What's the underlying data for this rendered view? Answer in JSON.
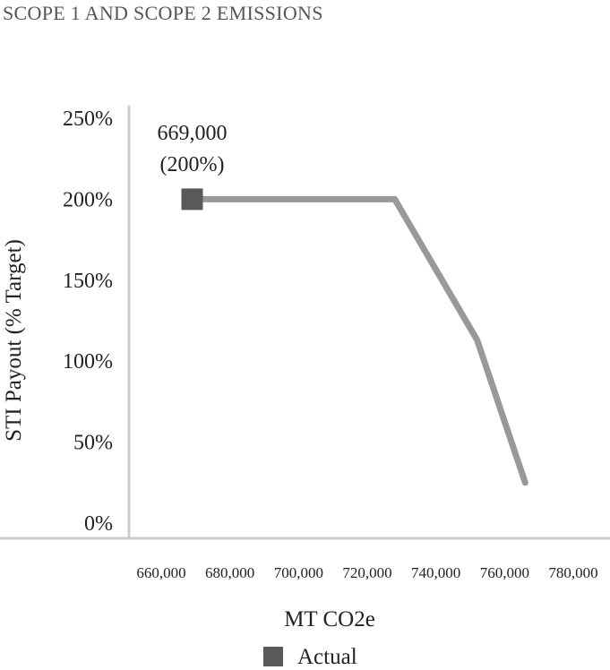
{
  "chart_data": {
    "type": "line",
    "title": "SCOPE 1 AND SCOPE 2 EMISSIONS",
    "xlabel": "MT CO2e",
    "ylabel": "STI Payout (% Target)",
    "x_ticks": [
      "660,000",
      "680,000",
      "700,000",
      "720,000",
      "740,000",
      "760,000",
      "780,000"
    ],
    "x_tick_values": [
      660000,
      680000,
      700000,
      720000,
      740000,
      760000,
      780000
    ],
    "y_ticks": [
      "0%",
      "50%",
      "100%",
      "150%",
      "200%",
      "250%"
    ],
    "y_tick_values": [
      0,
      50,
      100,
      150,
      200,
      250
    ],
    "xlim": [
      650000,
      790000
    ],
    "ylim": [
      0,
      250
    ],
    "grid": false,
    "series": [
      {
        "values": [
          [
            669000,
            200
          ],
          [
            711000,
            200
          ],
          [
            728000,
            200
          ],
          [
            752000,
            113
          ],
          [
            766000,
            25
          ]
        ]
      }
    ],
    "actual": {
      "name": "Actual",
      "x": 669000,
      "y": 200,
      "label_value": "669,000",
      "label_pct": "(200%)"
    },
    "legend": {
      "position": "bottom-center",
      "entries": [
        "Actual"
      ]
    },
    "colors": {
      "line": "#999999",
      "marker": "#58595b",
      "axis": "#cccccc",
      "text": "#222222"
    }
  }
}
